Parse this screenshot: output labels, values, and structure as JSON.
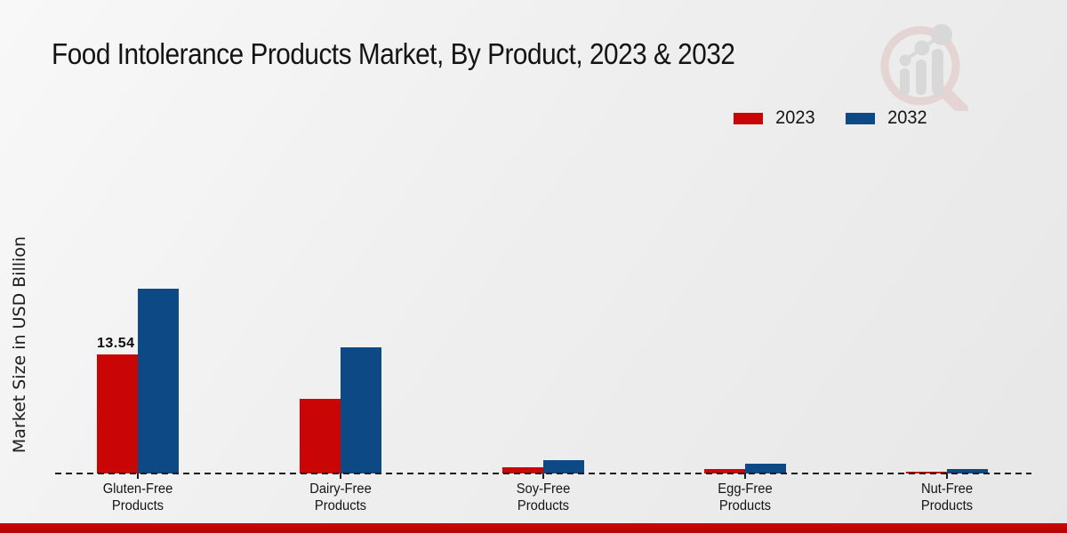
{
  "chart_data": {
    "type": "bar",
    "title": "Food Intolerance Products Market, By Product, 2023 & 2032",
    "xlabel": "",
    "ylabel": "Market Size in USD Billion",
    "categories": [
      "Gluten-Free Products",
      "Dairy-Free Products",
      "Soy-Free Products",
      "Egg-Free Products",
      "Nut-Free Products"
    ],
    "series": [
      {
        "name": "2023",
        "color": "#c90505",
        "values": [
          13.54,
          8.5,
          0.7,
          0.55,
          0.25
        ]
      },
      {
        "name": "2032",
        "color": "#0d4a85",
        "values": [
          21.0,
          14.35,
          1.5,
          1.1,
          0.5
        ]
      }
    ],
    "annotations": [
      {
        "series": "2023",
        "category": "Gluten-Free Products",
        "text": "13.54"
      }
    ],
    "ylim": [
      0,
      22
    ],
    "grid": false,
    "legend_position": "top-right",
    "baseline_style": "dashed"
  },
  "footer": {
    "color": "#b20404"
  },
  "watermark": {
    "name": "market-research-future-logo"
  }
}
